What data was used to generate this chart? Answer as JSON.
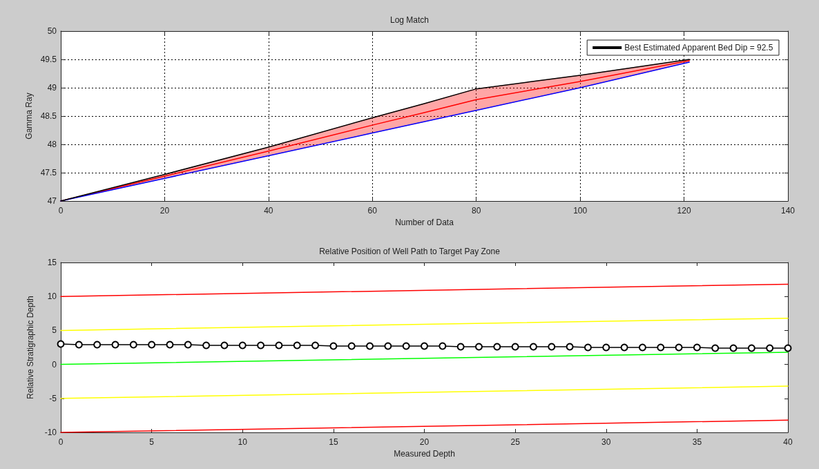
{
  "chart_data": [
    {
      "type": "line",
      "title": "Log Match",
      "xlabel": "Number of Data",
      "ylabel": "Gamma Ray",
      "xlim": [
        0,
        140
      ],
      "xticks": [
        0,
        20,
        40,
        60,
        80,
        100,
        120,
        140
      ],
      "ylim": [
        47,
        50
      ],
      "yticks": [
        47,
        47.5,
        48,
        48.5,
        49,
        49.5,
        50
      ],
      "grid": true,
      "legend": "top right",
      "marker": "none",
      "line_style": "solid",
      "series": [
        {
          "color": "#ff0000",
          "x": [
            0,
            20,
            40,
            60,
            70,
            80,
            90,
            100,
            121
          ],
          "values": [
            47,
            47.44,
            47.88,
            48.34,
            48.56,
            48.79,
            48.95,
            49.11,
            49.48
          ],
          "lower": [
            47,
            47.4,
            47.8,
            48.2,
            48.4,
            48.6,
            48.8,
            49.0,
            49.45
          ],
          "upper": [
            47,
            47.47,
            47.95,
            48.47,
            48.72,
            48.98,
            49.1,
            49.22,
            49.5
          ]
        },
        {
          "color": "#0000ff",
          "x": [
            0,
            20,
            40,
            60,
            80,
            100,
            121
          ],
          "values": [
            47,
            47.4,
            47.8,
            48.2,
            48.6,
            49.0,
            49.45
          ]
        },
        {
          "name": "Best Estimated Apparent Bed Dip = 92.5",
          "color": "#000000",
          "x": [
            0,
            20,
            40,
            60,
            70,
            80,
            90,
            100,
            121
          ],
          "values": [
            47,
            47.47,
            47.95,
            48.47,
            48.72,
            48.98,
            49.1,
            49.22,
            49.5
          ]
        }
      ]
    },
    {
      "type": "line",
      "title": "Relative Position of Well Path to Target Pay Zone",
      "xlabel": "Measured Depth",
      "ylabel": "Relative Stratigraphic Depth",
      "xlim": [
        0,
        40
      ],
      "xticks": [
        0,
        5,
        10,
        15,
        20,
        25,
        30,
        35,
        40
      ],
      "ylim": [
        -10,
        15
      ],
      "yticks": [
        -10,
        -5,
        0,
        5,
        10,
        15
      ],
      "grid": false,
      "legend": false,
      "line_style": "solid",
      "series": [
        {
          "color": "#ff0000",
          "x": [
            0,
            40
          ],
          "values": [
            10,
            11.8
          ],
          "marker": "none"
        },
        {
          "color": "#ffff00",
          "x": [
            0,
            40
          ],
          "values": [
            5,
            6.8
          ],
          "marker": "none"
        },
        {
          "color": "#00ff00",
          "x": [
            0,
            40
          ],
          "values": [
            0,
            1.8
          ],
          "marker": "none"
        },
        {
          "color": "#ffff00",
          "x": [
            0,
            40
          ],
          "values": [
            -5,
            -3.2
          ],
          "marker": "none"
        },
        {
          "color": "#ff0000",
          "x": [
            0,
            40
          ],
          "values": [
            -10,
            -8.2
          ],
          "marker": "none"
        },
        {
          "color": "#000000",
          "marker": "circle",
          "x": [
            0,
            1,
            2,
            3,
            4,
            5,
            6,
            7,
            8,
            9,
            10,
            11,
            12,
            13,
            14,
            15,
            16,
            17,
            18,
            19,
            20,
            21,
            22,
            23,
            24,
            25,
            26,
            27,
            28,
            29,
            30,
            31,
            32,
            33,
            34,
            35,
            36,
            37,
            38,
            39,
            40
          ],
          "values": [
            3.0,
            2.9,
            2.9,
            2.9,
            2.9,
            2.9,
            2.9,
            2.9,
            2.8,
            2.8,
            2.8,
            2.8,
            2.8,
            2.8,
            2.8,
            2.7,
            2.7,
            2.7,
            2.7,
            2.7,
            2.7,
            2.7,
            2.6,
            2.6,
            2.6,
            2.6,
            2.6,
            2.6,
            2.6,
            2.5,
            2.5,
            2.5,
            2.5,
            2.5,
            2.5,
            2.5,
            2.4,
            2.4,
            2.4,
            2.4,
            2.4
          ]
        }
      ]
    }
  ]
}
